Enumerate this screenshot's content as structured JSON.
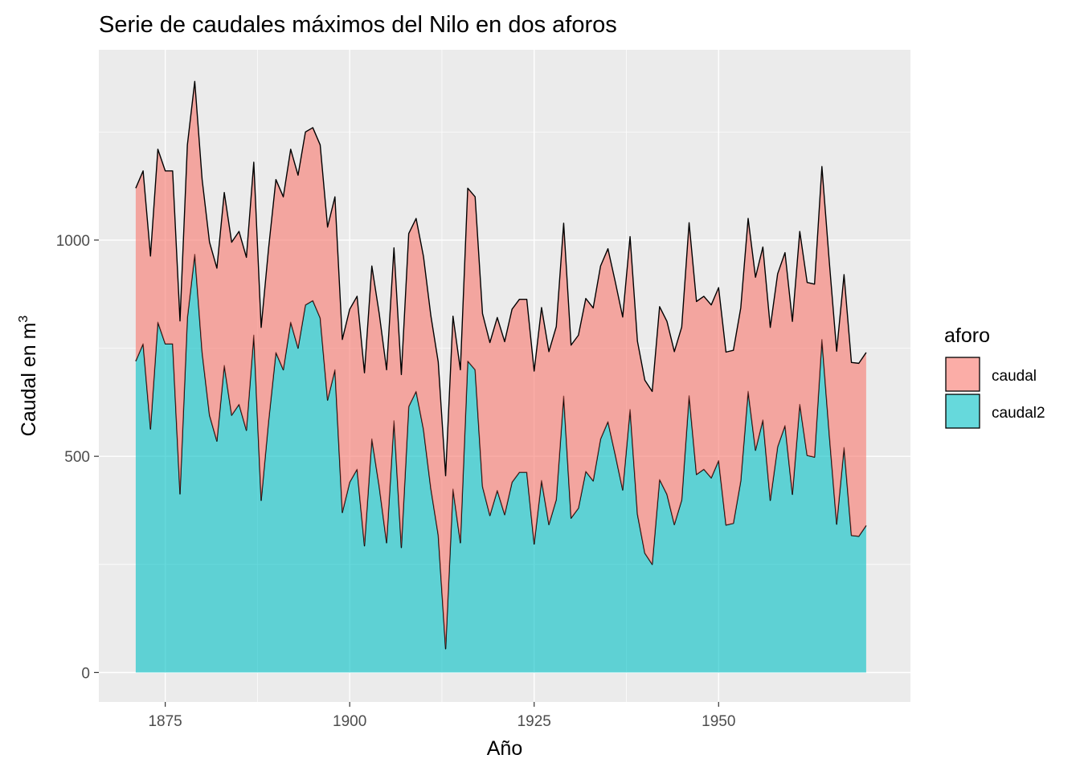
{
  "chart_data": {
    "type": "area",
    "title": "Serie de caudales máximos del Nilo en dos aforos",
    "xlabel": "Año",
    "ylabel": "Caudal en m",
    "ylabel_superscript": "3",
    "x_ticks": [
      "1875",
      "1900",
      "1925",
      "1950"
    ],
    "y_ticks": [
      "0",
      "500",
      "1000"
    ],
    "xlim": [
      1866,
      1976
    ],
    "ylim": [
      -68,
      1440
    ],
    "stacked": true,
    "grid": true,
    "legend": {
      "title": "aforo",
      "position": "right",
      "entries": [
        {
          "label": "caudal",
          "color": "#F8766D"
        },
        {
          "label": "caudal2",
          "color": "#00BFC4"
        }
      ]
    },
    "x": [
      1871,
      1872,
      1873,
      1874,
      1875,
      1876,
      1877,
      1878,
      1879,
      1880,
      1881,
      1882,
      1883,
      1884,
      1885,
      1886,
      1887,
      1888,
      1889,
      1890,
      1891,
      1892,
      1893,
      1894,
      1895,
      1896,
      1897,
      1898,
      1899,
      1900,
      1901,
      1902,
      1903,
      1904,
      1905,
      1906,
      1907,
      1908,
      1909,
      1910,
      1911,
      1912,
      1913,
      1914,
      1915,
      1916,
      1917,
      1918,
      1919,
      1920,
      1921,
      1922,
      1923,
      1924,
      1925,
      1926,
      1927,
      1928,
      1929,
      1930,
      1931,
      1932,
      1933,
      1934,
      1935,
      1936,
      1937,
      1938,
      1939,
      1940,
      1941,
      1942,
      1943,
      1944,
      1945,
      1946,
      1947,
      1948,
      1949,
      1950,
      1951,
      1952,
      1953,
      1954,
      1955,
      1956,
      1957,
      1958,
      1959,
      1960,
      1961,
      1962,
      1963,
      1964,
      1965,
      1966,
      1967,
      1968,
      1969,
      1970
    ],
    "series": [
      {
        "name": "caudal2",
        "values": [
          720,
          760,
          563,
          810,
          760,
          760,
          413,
          820,
          967,
          740,
          595,
          535,
          710,
          595,
          620,
          560,
          780,
          398,
          580,
          740,
          700,
          810,
          750,
          850,
          860,
          820,
          630,
          700,
          370,
          440,
          470,
          293,
          540,
          430,
          300,
          582,
          289,
          615,
          650,
          562,
          425,
          318,
          55,
          424,
          300,
          720,
          700,
          430,
          363,
          421,
          365,
          440,
          463,
          463,
          297,
          444,
          342,
          400,
          639,
          357,
          380,
          465,
          443,
          540,
          580,
          503,
          422,
          608,
          366,
          276,
          250,
          446,
          412,
          342,
          399,
          640,
          458,
          470,
          450,
          490,
          341,
          345,
          443,
          650,
          514,
          584,
          398,
          522,
          571,
          412,
          620,
          502,
          498,
          770,
          550,
          343,
          520,
          317,
          315,
          340
        ]
      },
      {
        "name": "caudal",
        "values": [
          400,
          400,
          400,
          400,
          400,
          400,
          400,
          400,
          400,
          400,
          400,
          400,
          400,
          400,
          400,
          400,
          400,
          400,
          400,
          400,
          400,
          400,
          400,
          400,
          400,
          400,
          400,
          400,
          400,
          400,
          400,
          400,
          400,
          400,
          400,
          400,
          400,
          400,
          400,
          400,
          400,
          400,
          400,
          400,
          400,
          400,
          400,
          400,
          400,
          400,
          400,
          400,
          400,
          400,
          400,
          400,
          400,
          400,
          400,
          400,
          400,
          400,
          400,
          400,
          400,
          400,
          400,
          400,
          400,
          400,
          400,
          400,
          400,
          400,
          400,
          400,
          400,
          400,
          400,
          400,
          400,
          400,
          400,
          400,
          400,
          400,
          400,
          400,
          400,
          400,
          400,
          400,
          400,
          400,
          400,
          400,
          400,
          400,
          400,
          400
        ]
      }
    ]
  }
}
